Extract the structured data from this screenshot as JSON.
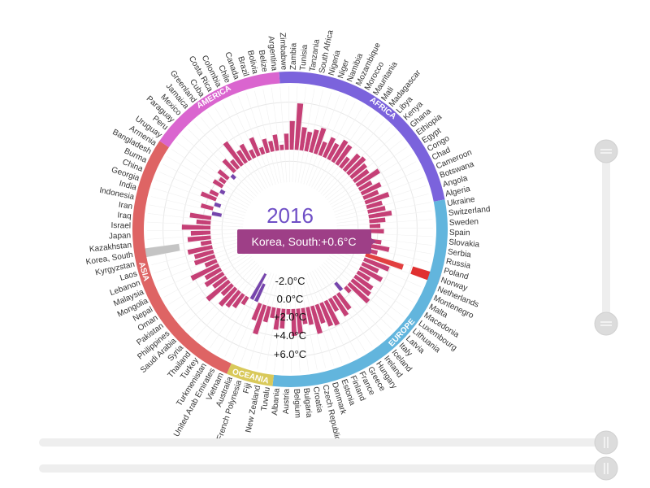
{
  "chart_data": {
    "type": "bar",
    "subtype": "radial-bar",
    "year": "2016",
    "unit": "°C",
    "radial_axis": {
      "ticks": [
        "-2.0°C",
        "0.0°C",
        "+2.0°C",
        "+4.0°C",
        "+6.0°C"
      ],
      "range": [
        -2,
        6
      ]
    },
    "regions": [
      {
        "name": "AFRICA",
        "color": "#7b63dc",
        "countries": [
          "Zimbabwe",
          "Zambia",
          "Tunisia",
          "Tanzania",
          "South Africa",
          "Nigeria",
          "Niger",
          "Namibia",
          "Mozambique",
          "Morocco",
          "Mauritania",
          "Mali",
          "Madagascar",
          "Libya",
          "Kenya",
          "Ghana",
          "Ethiopia",
          "Egypt",
          "Congo",
          "Chad",
          "Cameroon",
          "Botswana",
          "Angola",
          "Algeria"
        ]
      },
      {
        "name": "EUROPE",
        "color": "#62b5dd",
        "countries": [
          "Ukraine",
          "Switzerland",
          "Sweden",
          "Spain",
          "Slovakia",
          "Serbia",
          "Russia",
          "Poland",
          "Norway",
          "Netherlands",
          "Montenegro",
          "Malta",
          "Macedonia",
          "Luxembourg",
          "Lithuania",
          "Latvia",
          "Italy",
          "Iceland",
          "Ireland",
          "Hungary",
          "Greece",
          "France",
          "Finland",
          "Estonia",
          "Denmark",
          "Czech Republic",
          "Croatia",
          "Bulgaria",
          "Belgium",
          "Austria",
          "Albania"
        ]
      },
      {
        "name": "OCEANIA",
        "color": "#d9c95a",
        "countries": [
          "Tuvalu",
          "New Zealand",
          "Fiji",
          "French Polynesia",
          "Australia"
        ]
      },
      {
        "name": "ASIA",
        "color": "#de6464",
        "countries": [
          "Vietnam",
          "United Arab Emirates",
          "Turkmenistan",
          "Turkey",
          "Thailand",
          "Syria",
          "Saudi Arabia",
          "Philippines",
          "Pakistan",
          "Oman",
          "Nepal",
          "Mongolia",
          "Malaysia",
          "Lebanon",
          "Laos",
          "Kyrgyzstan",
          "Korea, South",
          "Kazakhstan",
          "Japan",
          "Israel",
          "Iraq",
          "Iran",
          "Indonesia",
          "India",
          "Georgia",
          "China",
          "Burma",
          "Bangladesh",
          "Armenia"
        ]
      },
      {
        "name": "AMERICA",
        "color": "#da65cf",
        "countries": [
          "Uruguay",
          "Peru",
          "Paraguay",
          "Mexico",
          "Jamaica",
          "Greenland",
          "Cuba",
          "Costa Rica",
          "Colombia",
          "Chile",
          "Canada",
          "Brazil",
          "Bolivia",
          "Belize",
          "Argentina"
        ]
      }
    ],
    "values": [
      {
        "country": "Zimbabwe",
        "value": 0.9
      },
      {
        "country": "Zambia",
        "value": 1.6
      },
      {
        "country": "Tunisia",
        "value": 2.6
      },
      {
        "country": "Tanzania",
        "value": 1.3
      },
      {
        "country": "South Africa",
        "value": 1.1
      },
      {
        "country": "Nigeria",
        "value": 1.3
      },
      {
        "country": "Niger",
        "value": 1.5
      },
      {
        "country": "Namibia",
        "value": 0.8
      },
      {
        "country": "Mozambique",
        "value": 1.2
      },
      {
        "country": "Morocco",
        "value": 1.0
      },
      {
        "country": "Mauritania",
        "value": 1.4
      },
      {
        "country": "Mali",
        "value": 1.3
      },
      {
        "country": "Madagascar",
        "value": 0.7
      },
      {
        "country": "Libya",
        "value": 1.2
      },
      {
        "country": "Kenya",
        "value": 1.3
      },
      {
        "country": "Ghana",
        "value": 1.1
      },
      {
        "country": "Ethiopia",
        "value": 1.0
      },
      {
        "country": "Egypt",
        "value": 1.5
      },
      {
        "country": "Congo",
        "value": 0.8
      },
      {
        "country": "Chad",
        "value": 1.2
      },
      {
        "country": "Cameroon",
        "value": 0.9
      },
      {
        "country": "Botswana",
        "value": 1.4
      },
      {
        "country": "Angola",
        "value": 0.9
      },
      {
        "country": "Algeria",
        "value": 1.0
      },
      {
        "country": "Ukraine",
        "value": 1.3
      },
      {
        "country": "Switzerland",
        "value": 0.9
      },
      {
        "country": "Sweden",
        "value": 0.6
      },
      {
        "country": "Spain",
        "value": 0.8
      },
      {
        "country": "Slovakia",
        "value": -0.5
      },
      {
        "country": "Serbia",
        "value": 0.7
      },
      {
        "country": "Russia",
        "value": 1.2
      },
      {
        "country": "Poland",
        "value": 0.6
      },
      {
        "country": "Norway",
        "value": 2.2
      },
      {
        "country": "Netherlands",
        "value": 1.5
      },
      {
        "country": "Montenegro",
        "value": 1.0
      },
      {
        "country": "Malta",
        "value": 1.4
      },
      {
        "country": "Macedonia",
        "value": 0.8
      },
      {
        "country": "Luxembourg",
        "value": 1.2
      },
      {
        "country": "Lithuania",
        "value": 1.3
      },
      {
        "country": "Latvia",
        "value": 1.5
      },
      {
        "country": "Italy",
        "value": 0.4
      },
      {
        "country": "Iceland",
        "value": -0.6
      },
      {
        "country": "Ireland",
        "value": 1.1
      },
      {
        "country": "Hungary",
        "value": 1.3
      },
      {
        "country": "Greece",
        "value": 0.8
      },
      {
        "country": "France",
        "value": 1.5
      },
      {
        "country": "Finland",
        "value": 1.4
      },
      {
        "country": "Estonia",
        "value": 1.1
      },
      {
        "country": "Denmark",
        "value": 1.6
      },
      {
        "country": "Czech Republic",
        "value": 1.0
      },
      {
        "country": "Croatia",
        "value": 0.9
      },
      {
        "country": "Bulgaria",
        "value": 1.4
      },
      {
        "country": "Belgium",
        "value": 1.5
      },
      {
        "country": "Austria",
        "value": 0.3
      },
      {
        "country": "Albania",
        "value": 1.1
      },
      {
        "country": "Tuvalu",
        "value": 1.2
      },
      {
        "country": "New Zealand",
        "value": 0.6
      },
      {
        "country": "Fiji",
        "value": 0.9
      },
      {
        "country": "French Polynesia",
        "value": 1.7
      },
      {
        "country": "Australia",
        "value": 1.0
      },
      {
        "country": "Vietnam",
        "value": -1.2
      },
      {
        "country": "United Arab Emirates",
        "value": -1.8
      },
      {
        "country": "Turkmenistan",
        "value": 0.5
      },
      {
        "country": "Turkey",
        "value": 0.9
      },
      {
        "country": "Thailand",
        "value": 1.1
      },
      {
        "country": "Syria",
        "value": 1.3
      },
      {
        "country": "Saudi Arabia",
        "value": 0.8
      },
      {
        "country": "Philippines",
        "value": 1.6
      },
      {
        "country": "Pakistan",
        "value": 0.9
      },
      {
        "country": "Oman",
        "value": 1.2
      },
      {
        "country": "Nepal",
        "value": 1.0
      },
      {
        "country": "Mongolia",
        "value": 1.7
      },
      {
        "country": "Malaysia",
        "value": 0.7
      },
      {
        "country": "Lebanon",
        "value": 1.2
      },
      {
        "country": "Laos",
        "value": 1.1
      },
      {
        "country": "Kyrgyzstan",
        "value": 1.4
      },
      {
        "country": "Korea, South",
        "value": 0.6
      },
      {
        "country": "Kazakhstan",
        "value": 1.3
      },
      {
        "country": "Japan",
        "value": 1.1
      },
      {
        "country": "Israel",
        "value": 1.6
      },
      {
        "country": "Iraq",
        "value": 0.8
      },
      {
        "country": "Iran",
        "value": 1.2
      },
      {
        "country": "Indonesia",
        "value": -0.6
      },
      {
        "country": "India",
        "value": 0.7
      },
      {
        "country": "Georgia",
        "value": -0.4
      },
      {
        "country": "China",
        "value": 0.9
      },
      {
        "country": "Burma",
        "value": 0.5
      },
      {
        "country": "Bangladesh",
        "value": -0.3
      },
      {
        "country": "Armenia",
        "value": 0.6
      },
      {
        "country": "Uruguay",
        "value": 0.4
      },
      {
        "country": "Peru",
        "value": 0.7
      },
      {
        "country": "Paraguay",
        "value": -0.3
      },
      {
        "country": "Mexico",
        "value": 0.9
      },
      {
        "country": "Jamaica",
        "value": 0.6
      },
      {
        "country": "Greenland",
        "value": 1.6
      },
      {
        "country": "Cuba",
        "value": 0.8
      },
      {
        "country": "Costa Rica",
        "value": 1.0
      },
      {
        "country": "Colombia",
        "value": 0.5
      },
      {
        "country": "Chile",
        "value": 1.1
      },
      {
        "country": "Canada",
        "value": 0.4
      },
      {
        "country": "Brazil",
        "value": 0.8
      },
      {
        "country": "Bolivia",
        "value": 0.6
      },
      {
        "country": "Belize",
        "value": 0.9
      },
      {
        "country": "Argentina",
        "value": 0.3
      }
    ],
    "highlight": {
      "country": "Norway",
      "color": "#e03030"
    },
    "selected": {
      "country": "Korea, South",
      "color": "#c4c4c4"
    },
    "tooltip": {
      "text": "Korea, South:+0.6°C",
      "color": "#9e3f87"
    }
  },
  "controls": {
    "vertical_slider": {
      "min_handle": "top",
      "max_handle": "bottom"
    },
    "horizontal_sliders": [
      {
        "name": "year-slider",
        "position": 1.0
      },
      {
        "name": "speed-slider",
        "position": 1.0
      }
    ]
  },
  "colors": {
    "bar_positive": "#c0306a",
    "bar_negative": "#6a35a5",
    "grid": "#e8e8e8"
  }
}
